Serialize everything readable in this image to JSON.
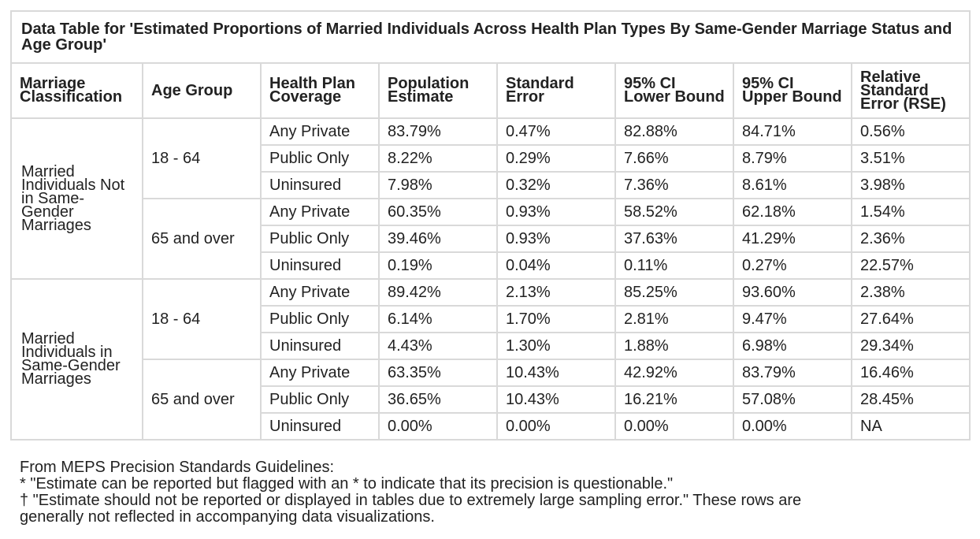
{
  "title": "Data Table for 'Estimated Proportions of Married Individuals Across Health Plan Types By Same-Gender Marriage Status and Age Group'",
  "headers": {
    "marriage": "Marriage Classification",
    "age": "Age Group",
    "coverage": "Health Plan Coverage",
    "estimate": "Population Estimate",
    "se": "Standard Error",
    "lower": "95% CI Lower Bound",
    "upper": "95% CI Upper Bound",
    "rse": "Relative Standard Error (RSE)"
  },
  "groups": [
    {
      "classification": "Married Individuals Not in Same-Gender Marriages",
      "ages": [
        {
          "age": "18 - 64",
          "rows": [
            {
              "coverage": "Any Private",
              "estimate": "83.79%",
              "se": "0.47%",
              "lower": "82.88%",
              "upper": "84.71%",
              "rse": "0.56%"
            },
            {
              "coverage": "Public Only",
              "estimate": "8.22%",
              "se": "0.29%",
              "lower": "7.66%",
              "upper": "8.79%",
              "rse": "3.51%"
            },
            {
              "coverage": "Uninsured",
              "estimate": "7.98%",
              "se": "0.32%",
              "lower": "7.36%",
              "upper": "8.61%",
              "rse": "3.98%"
            }
          ]
        },
        {
          "age": "65 and over",
          "rows": [
            {
              "coverage": "Any Private",
              "estimate": "60.35%",
              "se": "0.93%",
              "lower": "58.52%",
              "upper": "62.18%",
              "rse": "1.54%"
            },
            {
              "coverage": "Public Only",
              "estimate": "39.46%",
              "se": "0.93%",
              "lower": "37.63%",
              "upper": "41.29%",
              "rse": "2.36%"
            },
            {
              "coverage": "Uninsured",
              "estimate": "0.19%",
              "se": "0.04%",
              "lower": "0.11%",
              "upper": "0.27%",
              "rse": "22.57%"
            }
          ]
        }
      ]
    },
    {
      "classification": "Married Individuals in Same-Gender Marriages",
      "ages": [
        {
          "age": "18 - 64",
          "rows": [
            {
              "coverage": "Any Private",
              "estimate": "89.42%",
              "se": "2.13%",
              "lower": "85.25%",
              "upper": "93.60%",
              "rse": "2.38%"
            },
            {
              "coverage": "Public Only",
              "estimate": "6.14%",
              "se": "1.70%",
              "lower": "2.81%",
              "upper": "9.47%",
              "rse": "27.64%"
            },
            {
              "coverage": "Uninsured",
              "estimate": "4.43%",
              "se": "1.30%",
              "lower": "1.88%",
              "upper": "6.98%",
              "rse": "29.34%"
            }
          ]
        },
        {
          "age": "65 and over",
          "rows": [
            {
              "coverage": "Any Private",
              "estimate": "63.35%",
              "se": "10.43%",
              "lower": "42.92%",
              "upper": "83.79%",
              "rse": "16.46%"
            },
            {
              "coverage": "Public Only",
              "estimate": "36.65%",
              "se": "10.43%",
              "lower": "16.21%",
              "upper": "57.08%",
              "rse": "28.45%"
            },
            {
              "coverage": "Uninsured",
              "estimate": "0.00%",
              "se": "0.00%",
              "lower": "0.00%",
              "upper": "0.00%",
              "rse": "NA"
            }
          ]
        }
      ]
    }
  ],
  "footnotes": {
    "source": "From MEPS Precision Standards Guidelines:",
    "star": "* \"Estimate can be reported but flagged with an * to indicate that its precision is questionable.\"",
    "dagger_line1": "† \"Estimate should not be reported or displayed in tables due to extremely large sampling error.\" These rows are",
    "dagger_line2": "generally not reflected in accompanying data visualizations."
  }
}
